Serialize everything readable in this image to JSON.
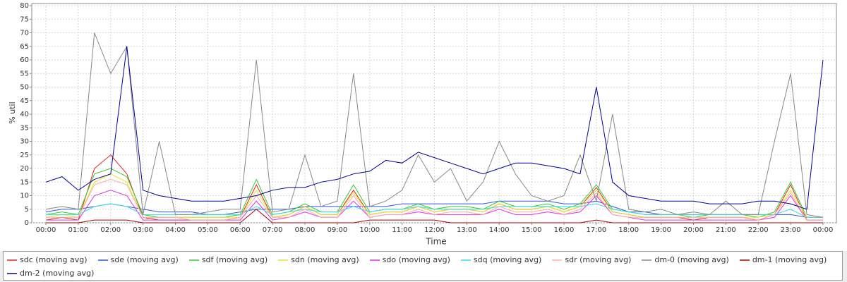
{
  "chart_data": {
    "type": "line",
    "y_label": "% util",
    "x_label": "Time",
    "categories": [
      "00:00",
      null,
      "01:00",
      null,
      "02:00",
      null,
      "03:00",
      null,
      "04:00",
      null,
      "05:00",
      null,
      "06:00",
      null,
      "07:00",
      null,
      "08:00",
      null,
      "09:00",
      null,
      "10:00",
      null,
      "11:00",
      null,
      "12:00",
      null,
      "13:00",
      null,
      "14:00",
      null,
      "15:00",
      null,
      "16:00",
      null,
      "17:00",
      null,
      "18:00",
      null,
      "19:00",
      null,
      "20:00",
      null,
      "21:00",
      null,
      "22:00",
      null,
      "23:00",
      null,
      "00:00"
    ],
    "ylim": [
      0,
      80
    ],
    "yticks": [
      0,
      5,
      10,
      15,
      20,
      25,
      30,
      35,
      40,
      45,
      50,
      55,
      60,
      65,
      70,
      75,
      80
    ],
    "grid": true,
    "series": [
      {
        "name": "sdc (moving avg)",
        "color": "#e02020",
        "values": [
          1,
          2,
          1,
          20,
          25,
          18,
          2,
          1,
          1,
          1,
          1,
          1,
          2,
          14,
          2,
          3,
          6,
          3,
          3,
          12,
          3,
          4,
          4,
          6,
          4,
          5,
          5,
          4,
          7,
          5,
          5,
          6,
          4,
          6,
          13,
          4,
          3,
          2,
          2,
          2,
          1,
          2,
          2,
          2,
          1,
          3,
          14,
          1,
          1
        ]
      },
      {
        "name": "sde (moving avg)",
        "color": "#3355dd",
        "values": [
          4,
          5,
          5,
          6,
          7,
          6,
          5,
          4,
          4,
          4,
          3,
          3,
          4,
          5,
          5,
          5,
          6,
          6,
          6,
          6,
          6,
          6,
          7,
          7,
          7,
          7,
          7,
          7,
          8,
          8,
          8,
          8,
          7,
          7,
          8,
          6,
          4,
          4,
          3,
          3,
          3,
          3,
          3,
          3,
          3,
          3,
          3,
          2,
          2
        ]
      },
      {
        "name": "sdf (moving avg)",
        "color": "#33cc33",
        "values": [
          3,
          4,
          3,
          18,
          20,
          17,
          3,
          2,
          2,
          2,
          2,
          2,
          3,
          16,
          3,
          4,
          7,
          4,
          4,
          14,
          4,
          5,
          5,
          7,
          5,
          6,
          6,
          5,
          8,
          6,
          6,
          7,
          5,
          7,
          14,
          5,
          4,
          3,
          3,
          3,
          2,
          3,
          3,
          3,
          2,
          4,
          15,
          2,
          2
        ]
      },
      {
        "name": "sdn (moving avg)",
        "color": "#e6e622",
        "values": [
          2,
          3,
          2,
          15,
          18,
          15,
          2,
          2,
          2,
          2,
          2,
          2,
          2,
          12,
          2,
          3,
          6,
          3,
          3,
          11,
          3,
          4,
          4,
          6,
          4,
          5,
          5,
          4,
          7,
          5,
          5,
          6,
          4,
          6,
          12,
          4,
          3,
          2,
          2,
          2,
          2,
          2,
          2,
          2,
          2,
          3,
          12,
          2,
          2
        ]
      },
      {
        "name": "sdo (moving avg)",
        "color": "#dd33dd",
        "values": [
          1,
          1,
          1,
          10,
          12,
          10,
          1,
          1,
          1,
          1,
          1,
          1,
          1,
          8,
          1,
          2,
          4,
          2,
          2,
          8,
          2,
          3,
          3,
          4,
          3,
          3,
          3,
          3,
          5,
          3,
          3,
          4,
          3,
          4,
          10,
          3,
          2,
          1,
          1,
          1,
          1,
          1,
          1,
          1,
          1,
          2,
          10,
          1,
          1
        ]
      },
      {
        "name": "sdq (moving avg)",
        "color": "#33dddd",
        "values": [
          3,
          3,
          3,
          6,
          7,
          6,
          3,
          3,
          3,
          3,
          3,
          3,
          3,
          6,
          3,
          4,
          5,
          4,
          4,
          6,
          4,
          5,
          5,
          6,
          5,
          5,
          5,
          5,
          6,
          6,
          6,
          6,
          6,
          6,
          7,
          5,
          4,
          3,
          3,
          3,
          3,
          3,
          3,
          3,
          3,
          3,
          5,
          2,
          2
        ]
      },
      {
        "name": "sdr (moving avg)",
        "color": "#ffaaaa",
        "values": [
          2,
          2,
          2,
          14,
          16,
          14,
          2,
          2,
          2,
          1,
          1,
          1,
          2,
          10,
          2,
          2,
          5,
          2,
          2,
          10,
          2,
          3,
          3,
          5,
          3,
          4,
          4,
          3,
          6,
          4,
          4,
          5,
          3,
          5,
          11,
          3,
          2,
          2,
          2,
          2,
          2,
          2,
          2,
          2,
          1,
          3,
          11,
          1,
          1
        ]
      },
      {
        "name": "dm-0 (moving avg)",
        "color": "#888888",
        "values": [
          5,
          6,
          5,
          70,
          55,
          65,
          3,
          30,
          3,
          3,
          4,
          5,
          5,
          60,
          4,
          5,
          25,
          6,
          8,
          55,
          6,
          8,
          12,
          25,
          15,
          20,
          8,
          15,
          30,
          18,
          10,
          8,
          10,
          25,
          8,
          40,
          5,
          4,
          5,
          3,
          4,
          3,
          8,
          3,
          3,
          30,
          55,
          3,
          2
        ]
      },
      {
        "name": "dm-1 (moving avg)",
        "color": "#aa0000",
        "values": [
          0,
          0,
          0,
          1,
          1,
          1,
          0,
          0,
          0,
          0,
          0,
          0,
          0,
          5,
          0,
          0,
          0,
          0,
          0,
          0,
          1,
          1,
          1,
          1,
          1,
          0,
          0,
          0,
          0,
          0,
          0,
          0,
          0,
          0,
          1,
          0,
          0,
          0,
          0,
          0,
          0,
          0,
          0,
          0,
          0,
          0,
          0,
          0,
          0
        ]
      },
      {
        "name": "dm-2 (moving avg)",
        "color": "#000099",
        "values": [
          15,
          17,
          12,
          16,
          18,
          65,
          12,
          10,
          9,
          8,
          8,
          8,
          9,
          10,
          12,
          13,
          13,
          15,
          16,
          18,
          19,
          23,
          22,
          26,
          24,
          22,
          20,
          18,
          20,
          22,
          22,
          21,
          20,
          18,
          50,
          15,
          10,
          9,
          8,
          8,
          8,
          7,
          7,
          7,
          8,
          8,
          7,
          5,
          60
        ]
      }
    ]
  }
}
